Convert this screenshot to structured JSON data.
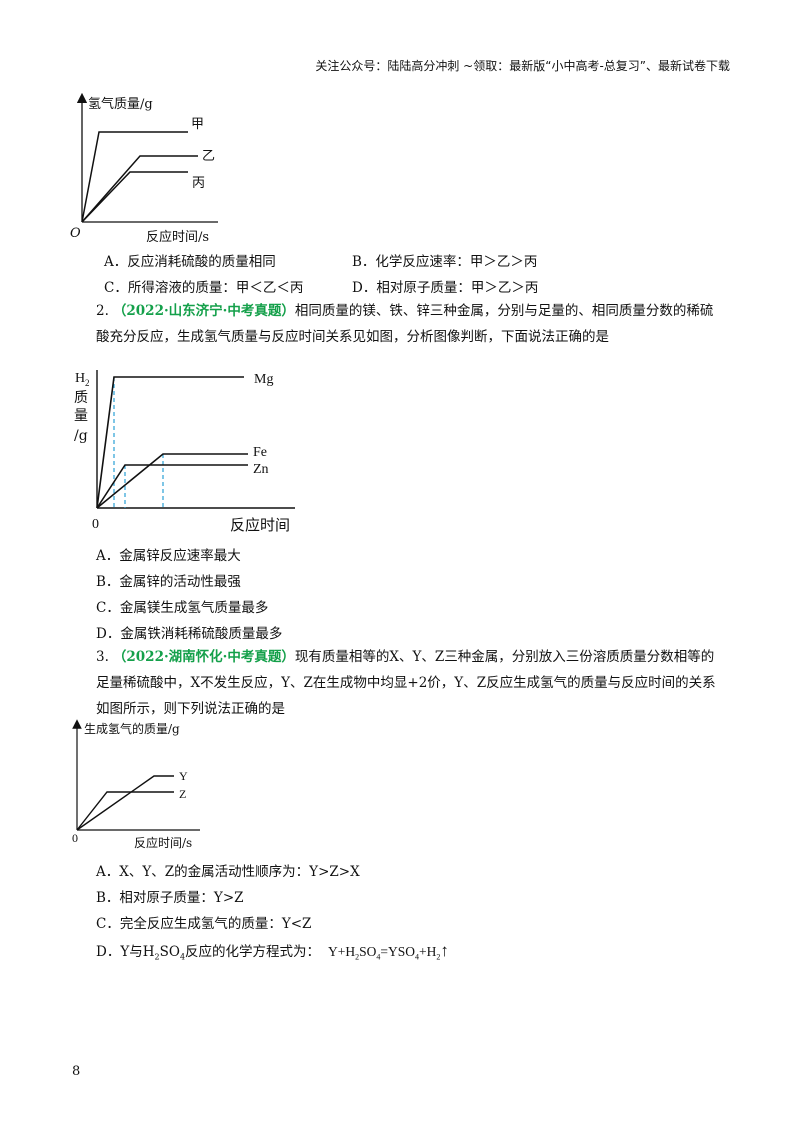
{
  "header": {
    "text": "关注公众号：陆陆高分冲刺  ~领取：最新版“小中高考-总复习”、最新试卷下载"
  },
  "q1": {
    "chart": {
      "ylabel": "氢气质量/g",
      "xlabel": "反应时间/s",
      "origin": "O",
      "series": [
        "甲",
        "乙",
        "丙"
      ]
    },
    "options": {
      "A": "A．反应消耗硫酸的质量相同",
      "B": "B．化学反应速率：甲＞乙＞丙",
      "C": "C．所得溶液的质量：甲＜乙＜丙",
      "D": "D．相对原子质量：甲＞乙＞丙"
    }
  },
  "q2": {
    "num": "2.",
    "source": "（2022·山东济宁·中考真题）",
    "stem": "相同质量的镁、铁、锌三种金属，分别与足量的、相同质量分数的稀硫酸充分反应，生成氢气质量与反应时间关系见如图，分析图像判断，下面说法正确的是",
    "chart": {
      "ylabel_1": "H",
      "ylabel_sub": "2",
      "ylabel_2": "质",
      "ylabel_3": "量",
      "ylabel_4": "/g",
      "xlabel": "反应时间",
      "origin": "0",
      "series": [
        "Mg",
        "Fe",
        "Zn"
      ]
    },
    "options": {
      "A": "A．金属锌反应速率最大",
      "B": "B．金属锌的活动性最强",
      "C": "C．金属镁生成氢气质量最多",
      "D": "D．金属铁消耗稀硫酸质量最多"
    }
  },
  "q3": {
    "num": "3.",
    "source": "（2022·湖南怀化·中考真题）",
    "stem": "现有质量相等的X、Y、Z三种金属，分别放入三份溶质质量分数相等的足量稀硫酸中，X不发生反应，Y、Z在生成物中均显+2价，Y、Z反应生成氢气的质量与反应时间的关系如图所示，则下列说法正确的是",
    "chart": {
      "ylabel": "生成氢气的质量/g",
      "xlabel": "反应时间/s",
      "origin": "0",
      "series": [
        "Y",
        "Z"
      ]
    },
    "options": {
      "A": "A．X、Y、Z的金属活动性顺序为：Y>Z>X",
      "B": "B．相对原子质量：Y>Z",
      "C": "C．完全反应生成氢气的质量：Y<Z",
      "D_prefix": "D．Y与H",
      "D_sub1": "2",
      "D_mid": "SO",
      "D_sub2": "4",
      "D_text": "反应的化学方程式为：",
      "D_eq1": "Y+H",
      "D_eq_sub1": "2",
      "D_eq2": "SO",
      "D_eq_sub2": "4",
      "D_eq3": "=YSO",
      "D_eq_sub3": "4",
      "D_eq4": "+H",
      "D_eq_sub4": "2",
      "D_arrow": "↑"
    }
  },
  "page": {
    "number": "8"
  }
}
